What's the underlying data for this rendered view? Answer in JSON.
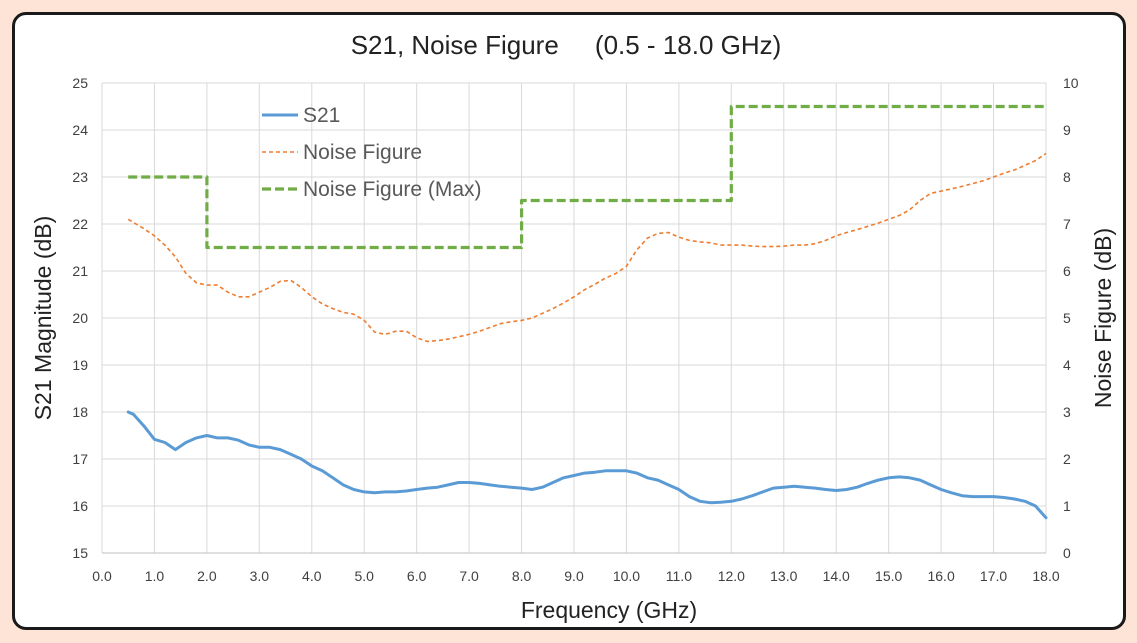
{
  "chart_data": {
    "type": "line",
    "title": "S21, Noise Figure     (0.5 - 18.0 GHz)",
    "xlabel": "Frequency (GHz)",
    "ylabel": "S21 Magnitude (dB)",
    "y2label": "Noise Figure (dB)",
    "xlim": [
      0,
      18
    ],
    "ylim": [
      15,
      25
    ],
    "y2lim": [
      0,
      10
    ],
    "xticks": [
      "0.0",
      "1.0",
      "2.0",
      "3.0",
      "4.0",
      "5.0",
      "6.0",
      "7.0",
      "8.0",
      "9.0",
      "10.0",
      "11.0",
      "12.0",
      "13.0",
      "14.0",
      "15.0",
      "16.0",
      "17.0",
      "18.0"
    ],
    "yticks": [
      "15",
      "16",
      "17",
      "18",
      "19",
      "20",
      "21",
      "22",
      "23",
      "24",
      "25"
    ],
    "y2ticks": [
      "0",
      "1",
      "2",
      "3",
      "4",
      "5",
      "6",
      "7",
      "8",
      "9",
      "10"
    ],
    "grid": true,
    "legend_position": "top-left",
    "series": [
      {
        "name": "S21",
        "axis": "left",
        "color": "#5b9bd5",
        "style": "solid",
        "x": [
          0.5,
          0.6,
          0.8,
          1.0,
          1.2,
          1.4,
          1.6,
          1.8,
          2.0,
          2.2,
          2.4,
          2.6,
          2.8,
          3.0,
          3.2,
          3.4,
          3.6,
          3.8,
          4.0,
          4.2,
          4.4,
          4.6,
          4.8,
          5.0,
          5.2,
          5.4,
          5.6,
          5.8,
          6.0,
          6.2,
          6.4,
          6.6,
          6.8,
          7.0,
          7.2,
          7.4,
          7.6,
          7.8,
          8.0,
          8.2,
          8.4,
          8.6,
          8.8,
          9.0,
          9.2,
          9.4,
          9.6,
          9.8,
          10.0,
          10.2,
          10.4,
          10.6,
          10.8,
          11.0,
          11.2,
          11.4,
          11.6,
          11.8,
          12.0,
          12.2,
          12.4,
          12.6,
          12.8,
          13.0,
          13.2,
          13.4,
          13.6,
          13.8,
          14.0,
          14.2,
          14.4,
          14.6,
          14.8,
          15.0,
          15.2,
          15.4,
          15.6,
          15.8,
          16.0,
          16.2,
          16.4,
          16.6,
          16.8,
          17.0,
          17.2,
          17.4,
          17.6,
          17.8,
          18.0
        ],
        "values": [
          18.0,
          17.95,
          17.7,
          17.42,
          17.35,
          17.2,
          17.35,
          17.45,
          17.5,
          17.45,
          17.45,
          17.4,
          17.3,
          17.25,
          17.25,
          17.2,
          17.1,
          17.0,
          16.85,
          16.75,
          16.6,
          16.45,
          16.35,
          16.3,
          16.28,
          16.3,
          16.3,
          16.32,
          16.35,
          16.38,
          16.4,
          16.45,
          16.5,
          16.5,
          16.48,
          16.45,
          16.42,
          16.4,
          16.38,
          16.35,
          16.4,
          16.5,
          16.6,
          16.65,
          16.7,
          16.72,
          16.75,
          16.75,
          16.75,
          16.7,
          16.6,
          16.55,
          16.45,
          16.35,
          16.2,
          16.1,
          16.07,
          16.08,
          16.1,
          16.15,
          16.22,
          16.3,
          16.38,
          16.4,
          16.42,
          16.4,
          16.38,
          16.35,
          16.33,
          16.35,
          16.4,
          16.48,
          16.55,
          16.6,
          16.62,
          16.6,
          16.55,
          16.45,
          16.35,
          16.28,
          16.22,
          16.2,
          16.2,
          16.2,
          16.18,
          16.15,
          16.1,
          16.0,
          15.75
        ]
      },
      {
        "name": "Noise Figure",
        "axis": "right",
        "color": "#ed7d31",
        "style": "dashed",
        "x": [
          0.5,
          0.8,
          1.0,
          1.2,
          1.4,
          1.6,
          1.8,
          2.0,
          2.2,
          2.4,
          2.6,
          2.8,
          3.0,
          3.2,
          3.4,
          3.6,
          3.8,
          4.0,
          4.2,
          4.4,
          4.6,
          4.8,
          5.0,
          5.2,
          5.4,
          5.6,
          5.8,
          6.0,
          6.2,
          6.4,
          6.6,
          6.8,
          7.0,
          7.2,
          7.4,
          7.6,
          7.8,
          8.0,
          8.2,
          8.4,
          8.6,
          8.8,
          9.0,
          9.2,
          9.4,
          9.6,
          9.8,
          10.0,
          10.2,
          10.4,
          10.6,
          10.8,
          11.0,
          11.2,
          11.4,
          11.6,
          11.8,
          12.0,
          12.2,
          12.4,
          12.6,
          12.8,
          13.0,
          13.2,
          13.4,
          13.6,
          13.8,
          14.0,
          14.2,
          14.4,
          14.6,
          14.8,
          15.0,
          15.2,
          15.4,
          15.6,
          15.8,
          16.0,
          16.2,
          16.4,
          16.6,
          16.8,
          17.0,
          17.2,
          17.4,
          17.6,
          17.8,
          18.0
        ],
        "values": [
          7.1,
          6.9,
          6.75,
          6.55,
          6.3,
          5.95,
          5.75,
          5.7,
          5.7,
          5.55,
          5.45,
          5.45,
          5.55,
          5.65,
          5.78,
          5.8,
          5.65,
          5.45,
          5.3,
          5.2,
          5.12,
          5.08,
          4.95,
          4.7,
          4.65,
          4.72,
          4.72,
          4.58,
          4.5,
          4.52,
          4.55,
          4.6,
          4.65,
          4.72,
          4.8,
          4.88,
          4.92,
          4.95,
          5.0,
          5.1,
          5.2,
          5.32,
          5.45,
          5.6,
          5.72,
          5.85,
          5.95,
          6.1,
          6.45,
          6.7,
          6.8,
          6.82,
          6.72,
          6.65,
          6.62,
          6.6,
          6.55,
          6.55,
          6.55,
          6.53,
          6.52,
          6.52,
          6.53,
          6.55,
          6.55,
          6.58,
          6.65,
          6.75,
          6.82,
          6.88,
          6.95,
          7.02,
          7.1,
          7.18,
          7.3,
          7.5,
          7.65,
          7.7,
          7.75,
          7.8,
          7.86,
          7.92,
          8.0,
          8.08,
          8.15,
          8.25,
          8.35,
          8.5
        ]
      },
      {
        "name": "Noise Figure (Max)",
        "axis": "right",
        "color": "#70ad47",
        "style": "dashed-thick",
        "x": [
          0.5,
          2.0,
          2.0,
          8.0,
          8.0,
          12.0,
          12.0,
          18.0
        ],
        "values": [
          8,
          8,
          6.5,
          6.5,
          7.5,
          7.5,
          9.5,
          9.5
        ]
      }
    ]
  }
}
